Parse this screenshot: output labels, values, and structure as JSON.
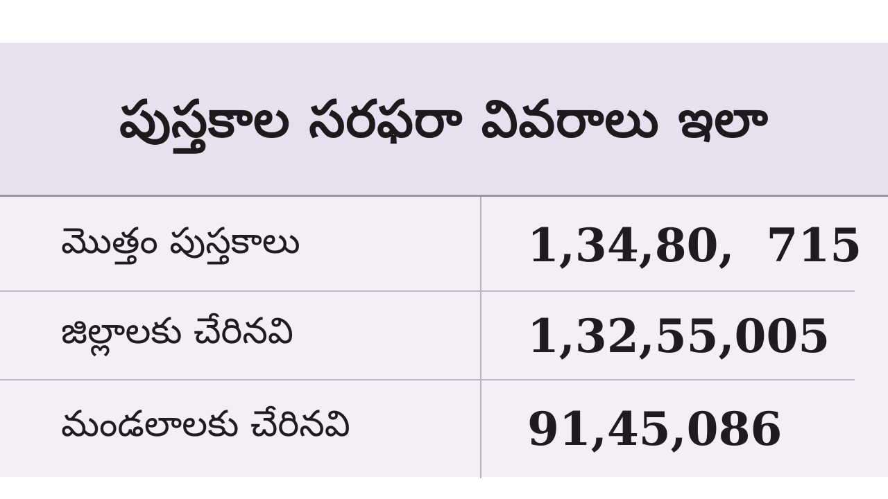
{
  "header": {
    "title": "పుస్తకాల సరఫరా వివరాలు ఇలా"
  },
  "table": {
    "rows": [
      {
        "label": "మొత్తం పుస్తకాలు",
        "value": "1,34,80,  715"
      },
      {
        "label": "జిల్లాలకు చేరినవి",
        "value": "1,32,55,005"
      },
      {
        "label": "మండలాలకు చేరినవి",
        "value": "91,45,086"
      }
    ]
  },
  "colors": {
    "header_bg": "#e7e0ee",
    "table_bg": "#f4eff7",
    "text": "#1f1c20",
    "rule": "#9a95a0"
  }
}
